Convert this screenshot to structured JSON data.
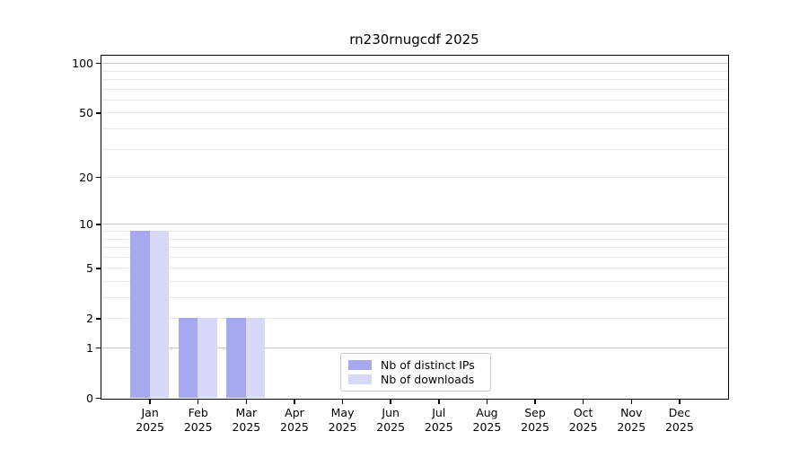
{
  "chart_data": {
    "type": "bar",
    "title": "rn230rnugcdf 2025",
    "year": "2025",
    "categories": [
      "Jan",
      "Feb",
      "Mar",
      "Apr",
      "May",
      "Jun",
      "Jul",
      "Aug",
      "Sep",
      "Oct",
      "Nov",
      "Dec"
    ],
    "series": [
      {
        "name": "Nb of distinct IPs",
        "color": "#a8a8f0",
        "values": [
          9,
          2,
          2,
          0,
          0,
          0,
          0,
          0,
          0,
          0,
          0,
          0
        ]
      },
      {
        "name": "Nb of downloads",
        "color": "#d8d8f8",
        "values": [
          9,
          2,
          2,
          0,
          0,
          0,
          0,
          0,
          0,
          0,
          0,
          0
        ]
      }
    ],
    "y_axis": {
      "scale": "log1p",
      "tick_values": [
        0,
        1,
        2,
        5,
        10,
        20,
        50,
        100
      ],
      "tick_labels": [
        "0",
        "1",
        "2",
        "5",
        "10",
        "20",
        "50",
        "100"
      ],
      "major_gridlines": [
        1,
        10,
        100
      ],
      "minor_gridlines": [
        2,
        3,
        4,
        5,
        6,
        7,
        8,
        9,
        20,
        30,
        40,
        50,
        60,
        70,
        80,
        90
      ],
      "ylim": [
        0,
        110
      ]
    },
    "grid": "horizontal",
    "legend": {
      "position": "lower center",
      "entries": [
        "Nb of distinct IPs",
        "Nb of downloads"
      ]
    },
    "colors": {
      "major_grid": "#c9c9c9",
      "minor_grid": "#e9e9e9",
      "spine": "#000000",
      "text": "#000000",
      "background": "#ffffff"
    }
  }
}
